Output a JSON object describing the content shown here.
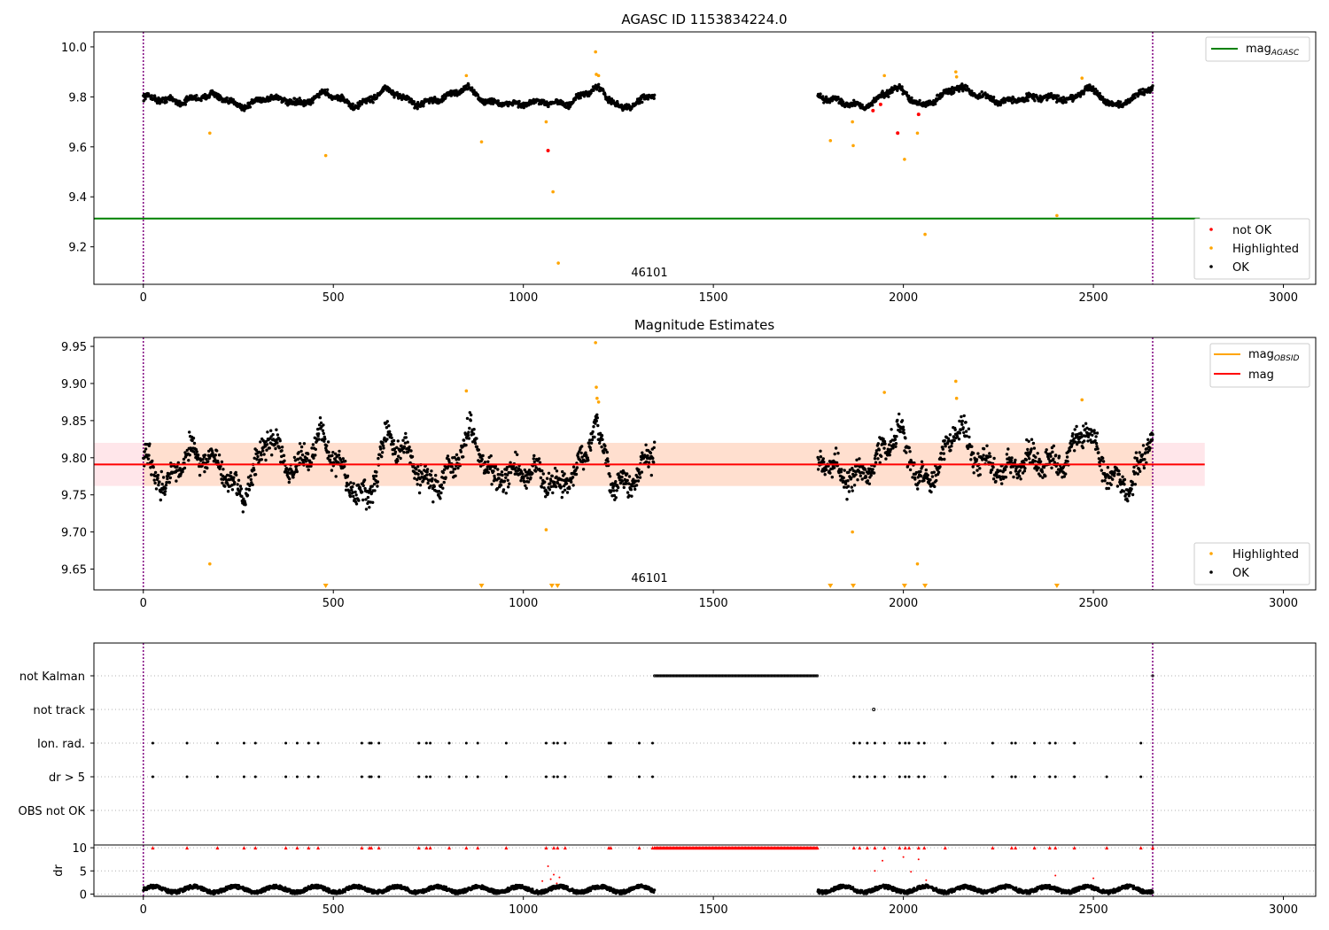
{
  "chart_data": [
    {
      "type": "scatter",
      "title": "AGASC ID 1153834224.0",
      "xlim": [
        -130,
        3085
      ],
      "ylim": [
        9.05,
        10.06
      ],
      "xticks": [
        0,
        500,
        1000,
        1500,
        2000,
        2500,
        3000
      ],
      "yticks": [
        "9.2",
        "9.4",
        "9.6",
        "9.8",
        "10.0"
      ],
      "ytick_values": [
        9.2,
        9.4,
        9.6,
        9.8,
        10.0
      ],
      "vlines": [
        0,
        2656
      ],
      "vline_color": "#800080",
      "hline": {
        "name": "mag",
        "subscript": "AGASC",
        "value": 9.313,
        "color": "#008000",
        "x_range": [
          -130,
          2780
        ]
      },
      "annotation": {
        "text": "46101",
        "x": 1330,
        "y": 9.085
      },
      "legend_top": [
        {
          "name": "mag",
          "subscript": "AGASC",
          "color": "#008000"
        }
      ],
      "legend_bottom": [
        {
          "name": "not OK",
          "color": "#ff0000"
        },
        {
          "name": "Highlighted",
          "color": "#ffa500"
        },
        {
          "name": "OK",
          "color": "#000000"
        }
      ],
      "ok_trend": {
        "segments": [
          [
            0,
            1345
          ],
          [
            1775,
            2656
          ]
        ],
        "points": [
          [
            0,
            9.8
          ],
          [
            100,
            9.78
          ],
          [
            180,
            9.81
          ],
          [
            260,
            9.76
          ],
          [
            330,
            9.8
          ],
          [
            420,
            9.77
          ],
          [
            480,
            9.82
          ],
          [
            560,
            9.76
          ],
          [
            640,
            9.83
          ],
          [
            720,
            9.77
          ],
          [
            800,
            9.8
          ],
          [
            850,
            9.84
          ],
          [
            900,
            9.78
          ],
          [
            980,
            9.77
          ],
          [
            1060,
            9.78
          ],
          [
            1120,
            9.77
          ],
          [
            1190,
            9.84
          ],
          [
            1260,
            9.75
          ],
          [
            1345,
            9.81
          ],
          [
            1775,
            9.8
          ],
          [
            1900,
            9.76
          ],
          [
            1980,
            9.84
          ],
          [
            2050,
            9.76
          ],
          [
            2140,
            9.84
          ],
          [
            2250,
            9.78
          ],
          [
            2350,
            9.8
          ],
          [
            2450,
            9.79
          ],
          [
            2480,
            9.84
          ],
          [
            2560,
            9.76
          ],
          [
            2656,
            9.84
          ]
        ],
        "spread": 0.012
      },
      "highlighted": [
        [
          175,
          9.655
        ],
        [
          480,
          9.565
        ],
        [
          850,
          9.885
        ],
        [
          890,
          9.62
        ],
        [
          1060,
          9.7
        ],
        [
          1078,
          9.42
        ],
        [
          1092,
          9.135
        ],
        [
          1190,
          9.98
        ],
        [
          1192,
          9.89
        ],
        [
          1198,
          9.885
        ],
        [
          1808,
          9.625
        ],
        [
          1866,
          9.7
        ],
        [
          1868,
          9.605
        ],
        [
          1950,
          9.885
        ],
        [
          2003,
          9.55
        ],
        [
          2037,
          9.655
        ],
        [
          2057,
          9.25
        ],
        [
          2138,
          9.9
        ],
        [
          2140,
          9.88
        ],
        [
          2404,
          9.325
        ],
        [
          2470,
          9.875
        ]
      ],
      "not_ok": [
        [
          1065,
          9.585
        ],
        [
          1920,
          9.745
        ],
        [
          1940,
          9.77
        ],
        [
          1985,
          9.655
        ],
        [
          2040,
          9.73
        ]
      ]
    },
    {
      "type": "scatter",
      "title": "Magnitude Estimates",
      "xlim": [
        -130,
        3085
      ],
      "ylim": [
        9.622,
        9.962
      ],
      "xticks": [
        0,
        500,
        1000,
        1500,
        2000,
        2500,
        3000
      ],
      "yticks": [
        "9.65",
        "9.70",
        "9.75",
        "9.80",
        "9.85",
        "9.90",
        "9.95"
      ],
      "ytick_values": [
        9.65,
        9.7,
        9.75,
        9.8,
        9.85,
        9.9,
        9.95
      ],
      "vlines": [
        0,
        2656
      ],
      "vline_color": "#800080",
      "band_obsid": {
        "range": [
          9.762,
          9.82
        ],
        "x_range": [
          0,
          2656
        ],
        "color": "#ffdfcf"
      },
      "band_mag": {
        "range": [
          9.762,
          9.82
        ],
        "x_range": [
          -130,
          2793
        ],
        "color": "#ffe6ea"
      },
      "hline": {
        "name": "mag",
        "value": 9.791,
        "color": "#ff0000",
        "x_range": [
          -130,
          2793
        ]
      },
      "annotation": {
        "text": "46101",
        "x": 1330,
        "y": 9.636
      },
      "legend_top": [
        {
          "name": "mag",
          "subscript": "OBSID",
          "color": "#ffa500"
        },
        {
          "name": "mag",
          "color": "#ff0000"
        }
      ],
      "legend_bottom": [
        {
          "name": "Highlighted",
          "color": "#ffa500"
        },
        {
          "name": "OK",
          "color": "#000000"
        }
      ],
      "ok_trend": {
        "segments": [
          [
            0,
            1345
          ],
          [
            1775,
            2656
          ]
        ],
        "points": [
          [
            0,
            9.805
          ],
          [
            60,
            9.76
          ],
          [
            120,
            9.81
          ],
          [
            200,
            9.79
          ],
          [
            260,
            9.745
          ],
          [
            330,
            9.83
          ],
          [
            400,
            9.78
          ],
          [
            470,
            9.83
          ],
          [
            540,
            9.765
          ],
          [
            590,
            9.74
          ],
          [
            640,
            9.83
          ],
          [
            700,
            9.8
          ],
          [
            760,
            9.76
          ],
          [
            820,
            9.79
          ],
          [
            860,
            9.84
          ],
          [
            920,
            9.77
          ],
          [
            980,
            9.78
          ],
          [
            1040,
            9.78
          ],
          [
            1090,
            9.76
          ],
          [
            1140,
            9.78
          ],
          [
            1190,
            9.84
          ],
          [
            1240,
            9.76
          ],
          [
            1290,
            9.77
          ],
          [
            1345,
            9.81
          ],
          [
            1775,
            9.8
          ],
          [
            1870,
            9.77
          ],
          [
            1920,
            9.79
          ],
          [
            1990,
            9.84
          ],
          [
            2040,
            9.77
          ],
          [
            2090,
            9.78
          ],
          [
            2140,
            9.85
          ],
          [
            2190,
            9.8
          ],
          [
            2260,
            9.78
          ],
          [
            2330,
            9.8
          ],
          [
            2420,
            9.79
          ],
          [
            2480,
            9.84
          ],
          [
            2540,
            9.775
          ],
          [
            2600,
            9.76
          ],
          [
            2656,
            9.84
          ]
        ],
        "spread": 0.016
      },
      "highlighted": [
        [
          175,
          9.657
        ],
        [
          850,
          9.89
        ],
        [
          1060,
          9.703
        ],
        [
          1190,
          9.955
        ],
        [
          1192,
          9.895
        ],
        [
          1194,
          9.88
        ],
        [
          1198,
          9.875
        ],
        [
          1866,
          9.7
        ],
        [
          1950,
          9.888
        ],
        [
          2037,
          9.657
        ],
        [
          2138,
          9.903
        ],
        [
          2140,
          9.88
        ],
        [
          2470,
          9.878
        ]
      ],
      "highlighted_below": [
        480,
        890,
        1075,
        1090,
        1808,
        1868,
        2003,
        2057,
        2404
      ]
    },
    {
      "type": "scatter",
      "categories": [
        "not Kalman",
        "not track",
        "Ion. rad.",
        "dr > 5",
        "OBS not OK"
      ],
      "xlim": [
        -130,
        3085
      ],
      "xticks": [
        0,
        500,
        1000,
        1500,
        2000,
        2500,
        3000
      ],
      "vlines": [
        0,
        2656
      ],
      "vline_color": "#800080",
      "not_kalman_range": [
        1345,
        1775
      ],
      "not_track": [
        1922
      ],
      "ion_rad": [
        25,
        115,
        195,
        265,
        295,
        375,
        405,
        435,
        460,
        575,
        595,
        600,
        620,
        725,
        745,
        755,
        805,
        850,
        880,
        955,
        1060,
        1080,
        1090,
        1110,
        1225,
        1230,
        1305,
        1340,
        1870,
        1885,
        1905,
        1925,
        1950,
        1990,
        2005,
        2015,
        2040,
        2055,
        2110,
        2235,
        2285,
        2295,
        2345,
        2385,
        2400,
        2450,
        2625
      ],
      "dr_gt_5": [
        25,
        115,
        195,
        265,
        295,
        375,
        405,
        435,
        460,
        575,
        595,
        600,
        620,
        725,
        745,
        755,
        805,
        850,
        880,
        955,
        1060,
        1080,
        1090,
        1110,
        1225,
        1230,
        1305,
        1340,
        1870,
        1885,
        1905,
        1925,
        1950,
        1990,
        2005,
        2015,
        2040,
        2055,
        2110,
        2235,
        2285,
        2295,
        2345,
        2385,
        2400,
        2450,
        2535,
        2625
      ],
      "dr_panel": {
        "ylabel": "dr",
        "yticks": [
          "0",
          "5",
          "10"
        ],
        "ytick_values": [
          0,
          5,
          10
        ],
        "ylim": [
          -0.5,
          10.6
        ],
        "clip_value": 10,
        "red_points": [
          [
            1050,
            2.8
          ],
          [
            1065,
            6.0
          ],
          [
            1072,
            3.2
          ],
          [
            1080,
            4.2
          ],
          [
            1088,
            2.3
          ],
          [
            1095,
            3.6
          ],
          [
            1925,
            5.0
          ],
          [
            1945,
            7.2
          ],
          [
            2000,
            8.0
          ],
          [
            2020,
            4.8
          ],
          [
            2040,
            7.5
          ],
          [
            2060,
            3.0
          ],
          [
            2400,
            4.0
          ],
          [
            2500,
            3.4
          ]
        ]
      }
    }
  ]
}
